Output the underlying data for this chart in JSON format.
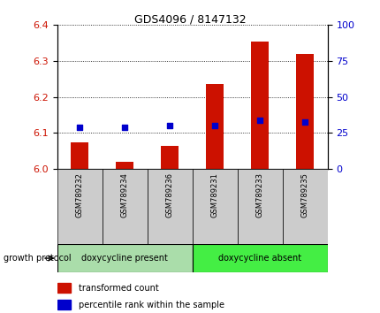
{
  "title": "GDS4096 / 8147132",
  "samples": [
    "GSM789232",
    "GSM789234",
    "GSM789236",
    "GSM789231",
    "GSM789233",
    "GSM789235"
  ],
  "red_values": [
    6.075,
    6.02,
    6.065,
    6.235,
    6.355,
    6.32
  ],
  "blue_values": [
    6.115,
    6.115,
    6.12,
    6.12,
    6.135,
    6.13
  ],
  "ylim_left": [
    6.0,
    6.4
  ],
  "ylim_right": [
    0,
    100
  ],
  "yticks_left": [
    6.0,
    6.1,
    6.2,
    6.3,
    6.4
  ],
  "yticks_right": [
    0,
    25,
    50,
    75,
    100
  ],
  "groups": [
    {
      "label": "doxycycline present",
      "indices": [
        0,
        1,
        2
      ],
      "color": "#aaddaa"
    },
    {
      "label": "doxycycline absent",
      "indices": [
        3,
        4,
        5
      ],
      "color": "#44ee44"
    }
  ],
  "group_label": "growth protocol",
  "legend_red": "transformed count",
  "legend_blue": "percentile rank within the sample",
  "bar_color": "#cc1100",
  "dot_color": "#0000cc",
  "bar_width": 0.4,
  "tick_label_color_left": "#cc1100",
  "tick_label_color_right": "#0000cc",
  "sample_box_color": "#cccccc",
  "title_fontsize": 9,
  "tick_fontsize": 8,
  "sample_fontsize": 6,
  "group_fontsize": 7,
  "legend_fontsize": 7
}
